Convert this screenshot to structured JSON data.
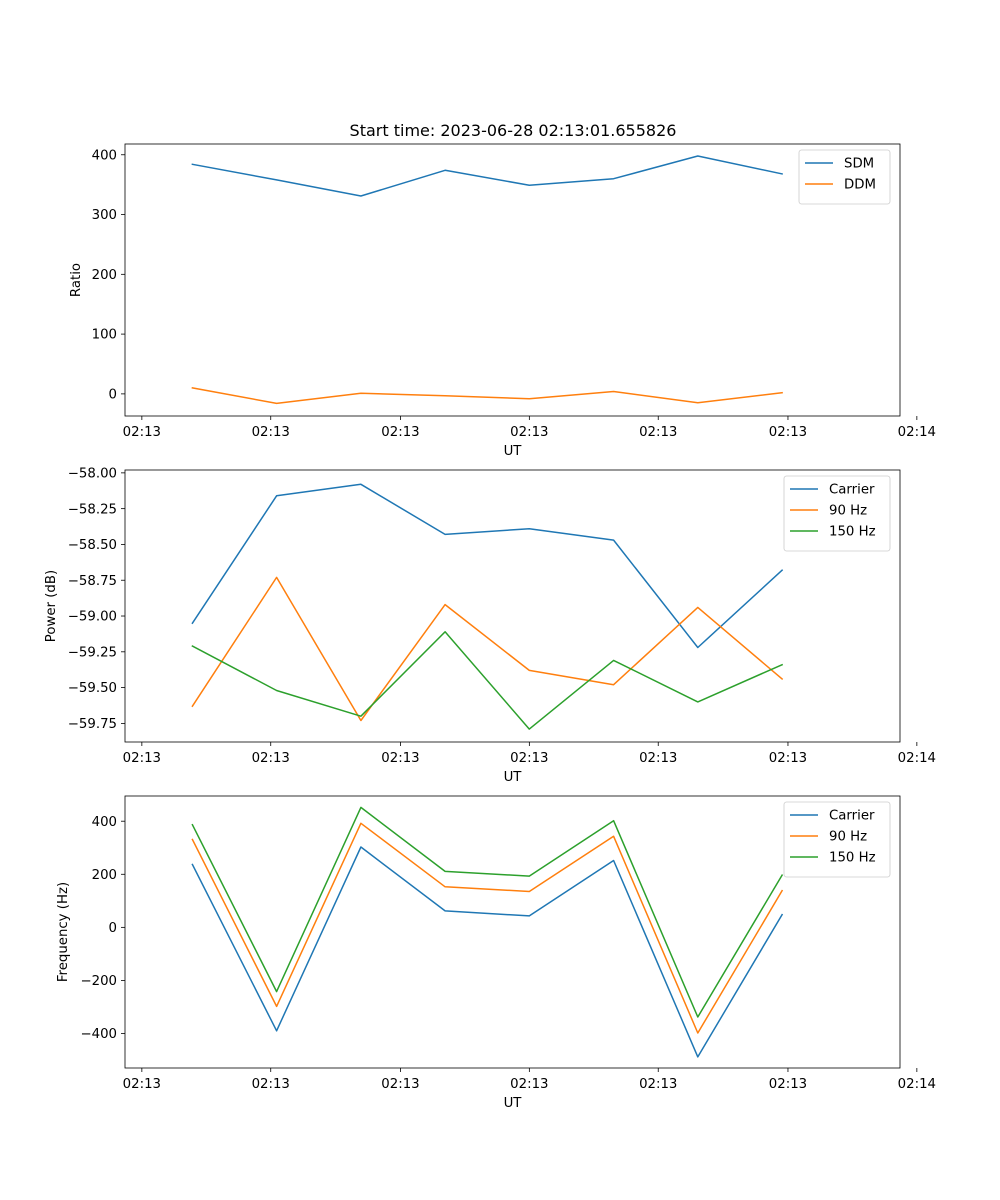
{
  "figure": {
    "title": "Start time: 2023-06-28 02:13:01.655826"
  },
  "chart_data": [
    {
      "type": "line",
      "title": "Start time: 2023-06-28 02:13:01.655826",
      "xlabel": "UT",
      "ylabel": "Ratio",
      "x": [
        1,
        2,
        3,
        4,
        5,
        6,
        7,
        8
      ],
      "xlim": [
        0.2,
        9.4
      ],
      "xticks": [
        0.4,
        1.93,
        3.47,
        5.0,
        6.53,
        8.07,
        9.6
      ],
      "xtick_labels": [
        "02:13",
        "02:13",
        "02:13",
        "02:13",
        "02:13",
        "02:13",
        "02:14"
      ],
      "ylim": [
        -37,
        418
      ],
      "yticks": [
        0,
        100,
        200,
        300,
        400
      ],
      "ytick_labels": [
        "0",
        "100",
        "200",
        "300",
        "400"
      ],
      "legend": "top-right",
      "series": [
        {
          "name": "SDM",
          "color": "#1f77b4",
          "values": [
            384,
            358,
            331,
            374,
            349,
            360,
            398,
            368
          ]
        },
        {
          "name": "DDM",
          "color": "#ff7f0e",
          "values": [
            10,
            -16,
            1,
            -3,
            -8,
            4,
            -15,
            2
          ]
        }
      ]
    },
    {
      "type": "line",
      "xlabel": "UT",
      "ylabel": "Power (dB)",
      "x": [
        1,
        2,
        3,
        4,
        5,
        6,
        7,
        8
      ],
      "xlim": [
        0.2,
        9.4
      ],
      "xticks": [
        0.4,
        1.93,
        3.47,
        5.0,
        6.53,
        8.07,
        9.6
      ],
      "xtick_labels": [
        "02:13",
        "02:13",
        "02:13",
        "02:13",
        "02:13",
        "02:13",
        "02:14"
      ],
      "ylim": [
        -59.88,
        -57.98
      ],
      "yticks": [
        -58.0,
        -58.25,
        -58.5,
        -58.75,
        -59.0,
        -59.25,
        -59.5,
        -59.75
      ],
      "ytick_labels": [
        "−58.00",
        "−58.25",
        "−58.50",
        "−58.75",
        "−59.00",
        "−59.25",
        "−59.50",
        "−59.75"
      ],
      "legend": "top-right",
      "series": [
        {
          "name": "Carrier",
          "color": "#1f77b4",
          "values": [
            -59.05,
            -58.16,
            -58.08,
            -58.43,
            -58.39,
            -58.47,
            -59.22,
            -58.68
          ]
        },
        {
          "name": "90 Hz",
          "color": "#ff7f0e",
          "values": [
            -59.63,
            -58.73,
            -59.73,
            -58.92,
            -59.38,
            -59.48,
            -58.94,
            -59.44
          ]
        },
        {
          "name": "150 Hz",
          "color": "#2ca02c",
          "values": [
            -59.21,
            -59.52,
            -59.7,
            -59.11,
            -59.79,
            -59.31,
            -59.6,
            -59.34
          ]
        }
      ]
    },
    {
      "type": "line",
      "xlabel": "UT",
      "ylabel": "Frequency (Hz)",
      "x": [
        1,
        2,
        3,
        4,
        5,
        6,
        7,
        8
      ],
      "xlim": [
        0.2,
        9.4
      ],
      "xticks": [
        0.4,
        1.93,
        3.47,
        5.0,
        6.53,
        8.07,
        9.6
      ],
      "xtick_labels": [
        "02:13",
        "02:13",
        "02:13",
        "02:13",
        "02:13",
        "02:13",
        "02:14"
      ],
      "ylim": [
        -530,
        495
      ],
      "yticks": [
        -400,
        -200,
        0,
        200,
        400
      ],
      "ytick_labels": [
        "−400",
        "−200",
        "0",
        "200",
        "400"
      ],
      "legend": "top-right",
      "series": [
        {
          "name": "Carrier",
          "color": "#1f77b4",
          "values": [
            237,
            -390,
            303,
            62,
            43,
            252,
            -488,
            48
          ]
        },
        {
          "name": "90 Hz",
          "color": "#ff7f0e",
          "values": [
            331,
            -298,
            392,
            153,
            135,
            343,
            -398,
            138
          ]
        },
        {
          "name": "150 Hz",
          "color": "#2ca02c",
          "values": [
            387,
            -242,
            452,
            211,
            193,
            402,
            -338,
            197
          ]
        }
      ]
    }
  ]
}
